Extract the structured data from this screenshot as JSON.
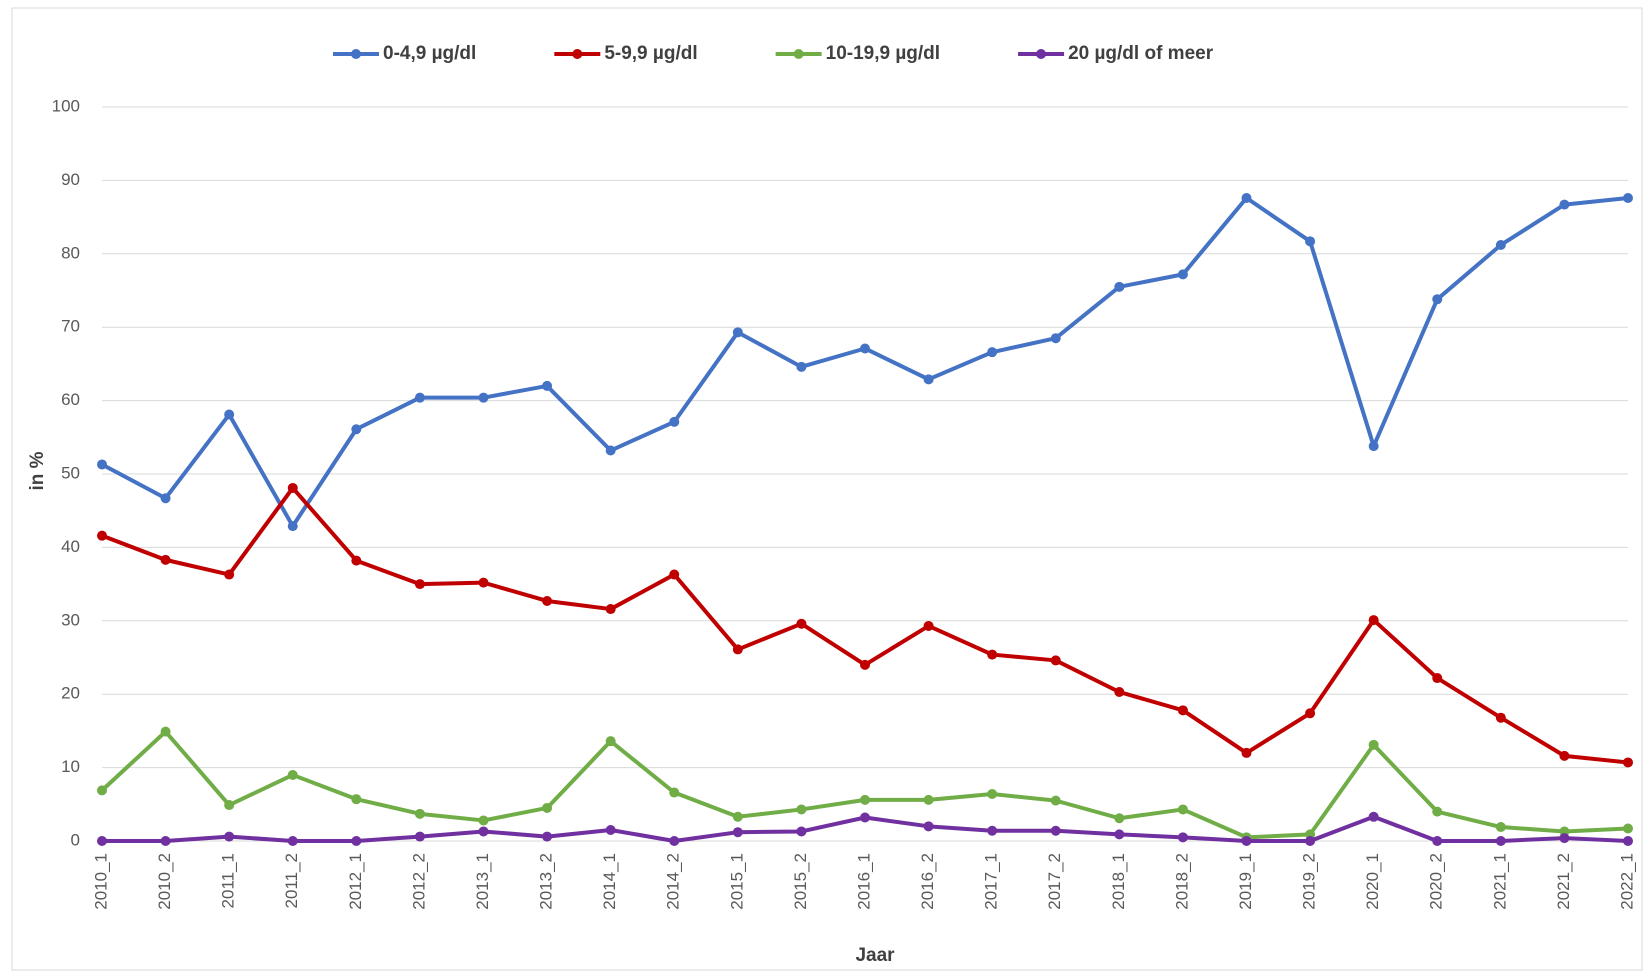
{
  "chart_data": {
    "type": "line",
    "xlabel": "Jaar",
    "ylabel": "in %",
    "categories": [
      "2010_1",
      "2010_2",
      "2011_1",
      "2011_2",
      "2012_1",
      "2012_2",
      "2013_1",
      "2013_2",
      "2014_1",
      "2014_2",
      "2015_1",
      "2015_2",
      "2016_1",
      "2016_2",
      "2017_1",
      "2017_2",
      "2018_1",
      "2018_2",
      "2019_1",
      "2019_2",
      "2020_1",
      "2020_2",
      "2021_1",
      "2021_2",
      "2022_1"
    ],
    "series": [
      {
        "name": "0-4,9 µg/dl",
        "color": "#4472c4",
        "values": [
          51.3,
          46.7,
          58.1,
          42.9,
          56.1,
          60.4,
          60.4,
          62.0,
          53.2,
          57.1,
          69.3,
          64.6,
          67.1,
          62.9,
          66.6,
          68.5,
          75.5,
          77.2,
          87.6,
          81.7,
          53.8,
          73.8,
          81.2,
          86.7,
          87.6
        ]
      },
      {
        "name": "5-9,9 µg/dl",
        "color": "#c00000",
        "values": [
          41.6,
          38.3,
          36.3,
          48.1,
          38.2,
          35.0,
          35.2,
          32.7,
          31.6,
          36.3,
          26.1,
          29.6,
          24.0,
          29.3,
          25.4,
          24.6,
          20.3,
          17.8,
          12.0,
          17.4,
          30.1,
          22.2,
          16.8,
          11.6,
          10.7
        ]
      },
      {
        "name": "10-19,9 µg/dl",
        "color": "#70ad47",
        "values": [
          6.9,
          14.9,
          4.9,
          9.0,
          5.7,
          3.7,
          2.8,
          4.5,
          13.6,
          6.6,
          3.3,
          4.3,
          5.6,
          5.6,
          6.4,
          5.5,
          3.1,
          4.3,
          0.5,
          0.9,
          13.1,
          4.0,
          1.9,
          1.3,
          1.7
        ]
      },
      {
        "name": "20 µg/dl of meer",
        "color": "#7030a0",
        "values": [
          0,
          0,
          0.6,
          0,
          0,
          0.6,
          1.3,
          0.6,
          1.5,
          0,
          1.2,
          1.3,
          3.2,
          2.0,
          1.4,
          1.4,
          0.9,
          0.5,
          0,
          0,
          3.3,
          0,
          0,
          0.4,
          0
        ]
      }
    ],
    "ylim": [
      0,
      100
    ],
    "yticks": [
      0,
      10,
      20,
      30,
      40,
      50,
      60,
      70,
      80,
      90,
      100
    ],
    "grid": true,
    "legend": "top"
  }
}
